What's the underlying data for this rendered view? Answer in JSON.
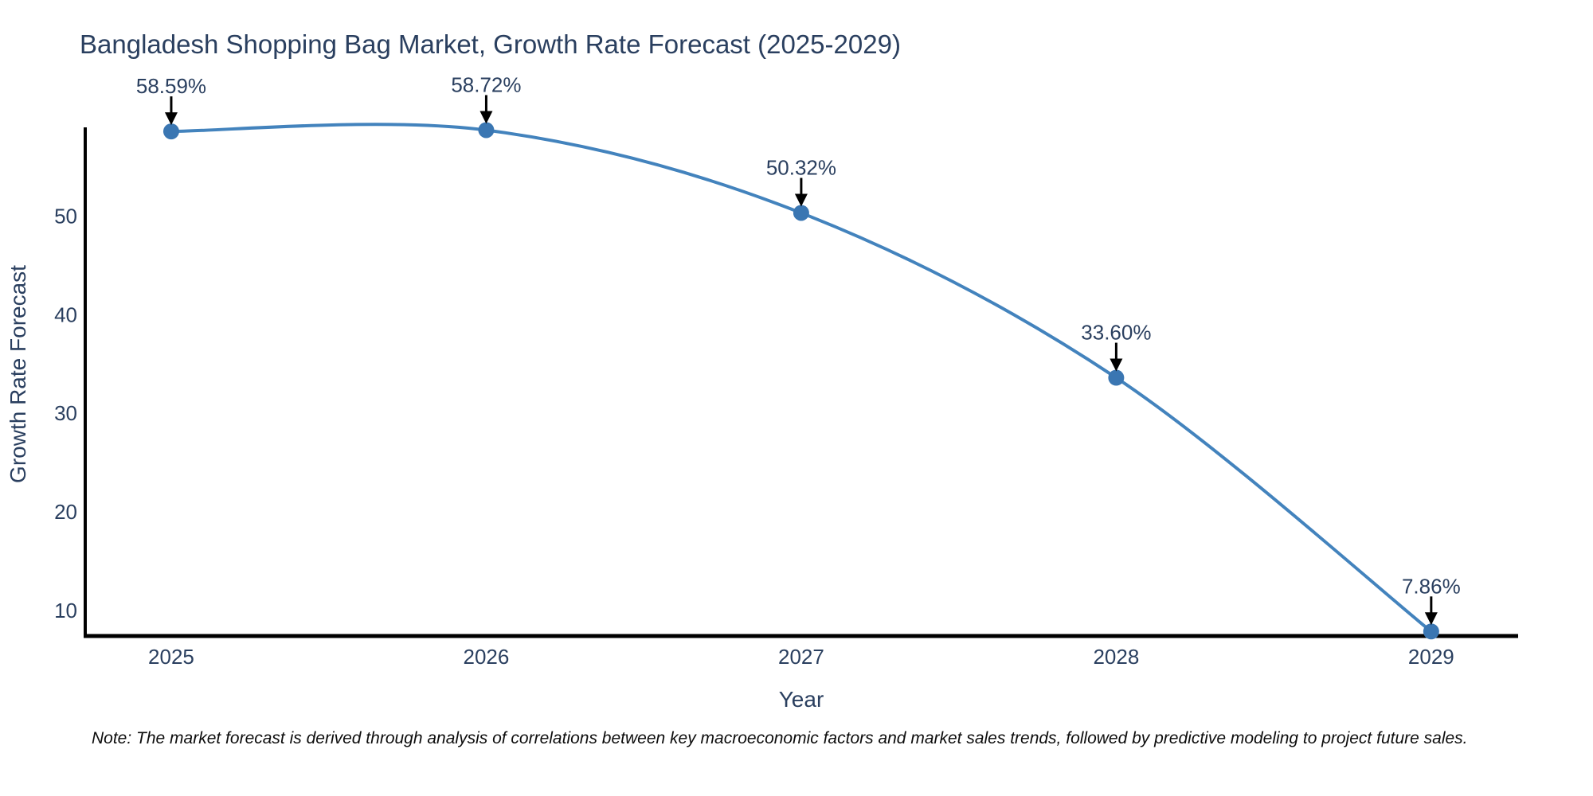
{
  "chart_data": {
    "type": "line",
    "title": "Bangladesh Shopping Bag Market, Growth Rate Forecast (2025-2029)",
    "xlabel": "Year",
    "ylabel": "Growth Rate Forecast",
    "x": [
      2025,
      2026,
      2027,
      2028,
      2029
    ],
    "values": [
      58.59,
      58.72,
      50.32,
      33.6,
      7.86
    ],
    "point_labels": [
      "58.59%",
      "58.72%",
      "50.32%",
      "33.60%",
      "7.86%"
    ],
    "x_tick_labels": [
      "2025",
      "2026",
      "2027",
      "2028",
      "2029"
    ],
    "y_ticks": [
      10,
      20,
      30,
      40,
      50
    ],
    "xlim": [
      2024.727,
      2029.276
    ],
    "ylim": [
      7.4,
      59.0
    ],
    "grid": false,
    "legend_position": "none",
    "line_shape": "spline",
    "colors": {
      "line": "#4383bd",
      "marker": "#3a76b2",
      "axis": "#000000",
      "text": "#2a3f5f",
      "annotation_arrow": "#000000"
    }
  },
  "note": "Note: The market forecast is derived through analysis of correlations between key macroeconomic factors and market sales trends, followed by predictive modeling to project future sales."
}
